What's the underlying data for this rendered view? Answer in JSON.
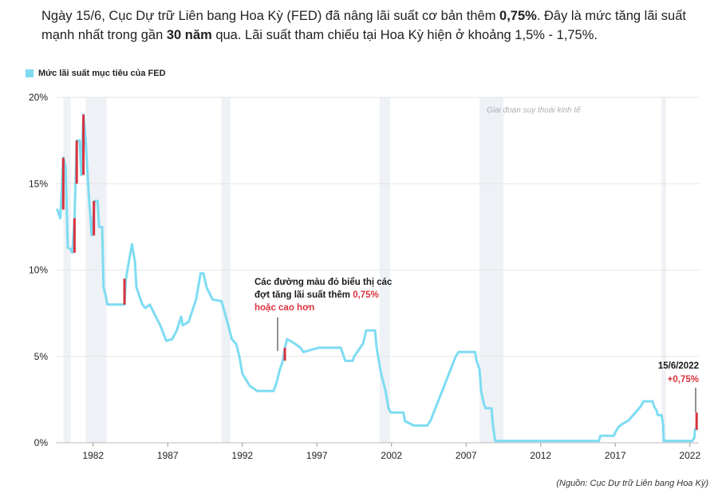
{
  "headline": {
    "p1": "Ngày 15/6, Cục Dự trữ Liên bang Hoa Kỳ (FED) đã nâng lãi suất cơ bản thêm ",
    "b1": "0,75%",
    "p2": ". Đây là mức tăng lãi suất mạnh nhất trong gần ",
    "b2": "30 năm",
    "p3": " qua. Lãi suất tham chiếu tại Hoa Kỳ hiện ở khoảng 1,5% - 1,75%."
  },
  "source": "(Nguồn: Cục Dự trữ Liên bang Hoa Kỳ)",
  "colors": {
    "line": "#7ddcf2",
    "hike": "#d9333f",
    "recession": "#eef1f5",
    "grid": "#e6e6e6"
  },
  "chart_data": {
    "type": "line",
    "xlim": [
      1979.5,
      2022.6
    ],
    "ylim": [
      0,
      20
    ],
    "x_ticks": [
      1982,
      1987,
      1992,
      1997,
      2002,
      2007,
      2012,
      2017,
      2022
    ],
    "y_ticks": [
      0,
      5,
      10,
      15,
      20
    ],
    "y_tick_labels": [
      "0%",
      "5%",
      "10%",
      "15%",
      "20%"
    ],
    "legend": {
      "label": "Mức lãi suất mục tiêu của FED",
      "placement": "top-left"
    },
    "recession_label": "Giai đoạn suy thoái kinh tế",
    "recessions": [
      [
        1980.0,
        1980.5
      ],
      [
        1981.5,
        1982.9
      ],
      [
        1990.6,
        1991.2
      ],
      [
        2001.2,
        2001.9
      ],
      [
        2007.9,
        2009.5
      ],
      [
        2020.1,
        2020.4
      ]
    ],
    "series": [
      {
        "name": "Mức lãi suất mục tiêu của FED",
        "points": [
          [
            1979.6,
            13.5
          ],
          [
            1979.8,
            13.0
          ],
          [
            1980.0,
            16.5
          ],
          [
            1980.15,
            16.0
          ],
          [
            1980.3,
            11.3
          ],
          [
            1980.5,
            11.2
          ],
          [
            1980.6,
            11.0
          ],
          [
            1980.75,
            13.0
          ],
          [
            1980.9,
            17.5
          ],
          [
            1981.1,
            17.5
          ],
          [
            1981.2,
            15.5
          ],
          [
            1981.35,
            19.0
          ],
          [
            1981.5,
            17.5
          ],
          [
            1981.7,
            14.5
          ],
          [
            1981.9,
            12.0
          ],
          [
            1982.1,
            14.0
          ],
          [
            1982.3,
            14.0
          ],
          [
            1982.4,
            12.5
          ],
          [
            1982.6,
            12.5
          ],
          [
            1982.7,
            9.0
          ],
          [
            1982.85,
            8.5
          ],
          [
            1982.95,
            8.0
          ],
          [
            1983.5,
            8.0
          ],
          [
            1984.1,
            8.0
          ],
          [
            1984.2,
            9.5
          ],
          [
            1984.4,
            10.5
          ],
          [
            1984.6,
            11.5
          ],
          [
            1984.8,
            10.5
          ],
          [
            1984.9,
            9.0
          ],
          [
            1985.1,
            8.5
          ],
          [
            1985.3,
            8.0
          ],
          [
            1985.5,
            7.8
          ],
          [
            1985.8,
            8.0
          ],
          [
            1986.2,
            7.3
          ],
          [
            1986.5,
            6.8
          ],
          [
            1986.9,
            5.9
          ],
          [
            1987.3,
            6.0
          ],
          [
            1987.6,
            6.5
          ],
          [
            1987.9,
            7.3
          ],
          [
            1988.0,
            6.8
          ],
          [
            1988.4,
            7.0
          ],
          [
            1988.9,
            8.3
          ],
          [
            1989.2,
            9.8
          ],
          [
            1989.4,
            9.8
          ],
          [
            1989.6,
            9.0
          ],
          [
            1990.0,
            8.3
          ],
          [
            1990.6,
            8.2
          ],
          [
            1990.9,
            7.3
          ],
          [
            1991.3,
            6.0
          ],
          [
            1991.6,
            5.7
          ],
          [
            1991.8,
            5.0
          ],
          [
            1992.0,
            4.0
          ],
          [
            1992.5,
            3.3
          ],
          [
            1993.0,
            3.0
          ],
          [
            1994.1,
            3.0
          ],
          [
            1994.3,
            3.5
          ],
          [
            1994.5,
            4.2
          ],
          [
            1994.7,
            4.7
          ],
          [
            1994.85,
            5.5
          ],
          [
            1995.0,
            6.0
          ],
          [
            1995.5,
            5.75
          ],
          [
            1995.9,
            5.5
          ],
          [
            1996.1,
            5.25
          ],
          [
            1997.1,
            5.5
          ],
          [
            1998.6,
            5.5
          ],
          [
            1998.8,
            5.0
          ],
          [
            1998.9,
            4.75
          ],
          [
            1999.4,
            4.75
          ],
          [
            1999.5,
            5.0
          ],
          [
            1999.9,
            5.5
          ],
          [
            2000.1,
            5.75
          ],
          [
            2000.3,
            6.5
          ],
          [
            2000.9,
            6.5
          ],
          [
            2001.0,
            5.5
          ],
          [
            2001.3,
            4.0
          ],
          [
            2001.6,
            3.0
          ],
          [
            2001.8,
            2.0
          ],
          [
            2001.95,
            1.75
          ],
          [
            2002.8,
            1.75
          ],
          [
            2002.9,
            1.25
          ],
          [
            2003.5,
            1.0
          ],
          [
            2004.4,
            1.0
          ],
          [
            2004.6,
            1.25
          ],
          [
            2005.4,
            3.0
          ],
          [
            2006.3,
            5.0
          ],
          [
            2006.5,
            5.25
          ],
          [
            2007.6,
            5.25
          ],
          [
            2007.7,
            4.75
          ],
          [
            2007.9,
            4.25
          ],
          [
            2008.0,
            3.0
          ],
          [
            2008.2,
            2.25
          ],
          [
            2008.3,
            2.0
          ],
          [
            2008.7,
            2.0
          ],
          [
            2008.8,
            1.0
          ],
          [
            2008.95,
            0.1
          ],
          [
            2015.9,
            0.1
          ],
          [
            2016.0,
            0.4
          ],
          [
            2016.9,
            0.4
          ],
          [
            2017.0,
            0.6
          ],
          [
            2017.2,
            0.9
          ],
          [
            2017.5,
            1.1
          ],
          [
            2017.9,
            1.3
          ],
          [
            2018.2,
            1.6
          ],
          [
            2018.5,
            1.9
          ],
          [
            2018.7,
            2.1
          ],
          [
            2018.9,
            2.4
          ],
          [
            2019.5,
            2.4
          ],
          [
            2019.6,
            2.1
          ],
          [
            2019.75,
            1.9
          ],
          [
            2019.85,
            1.6
          ],
          [
            2020.1,
            1.6
          ],
          [
            2020.2,
            1.1
          ],
          [
            2020.25,
            0.1
          ],
          [
            2022.15,
            0.1
          ],
          [
            2022.3,
            0.3
          ],
          [
            2022.35,
            0.8
          ],
          [
            2022.45,
            0.8
          ]
        ]
      }
    ],
    "hikes": [
      [
        1980.0,
        13.5,
        16.5
      ],
      [
        1980.75,
        11.0,
        13.0
      ],
      [
        1980.9,
        15.0,
        17.5
      ],
      [
        1981.35,
        15.5,
        19.0
      ],
      [
        1982.05,
        12.0,
        14.0
      ],
      [
        1984.1,
        8.0,
        9.5
      ],
      [
        1994.85,
        4.75,
        5.5
      ],
      [
        2022.45,
        0.75,
        1.75
      ]
    ],
    "annotations": {
      "hike_note": [
        "Các đường màu đỏ biểu thị các",
        "đợt   tăng lãi suất thêm ",
        "0,75%",
        "hoặc cao hơn"
      ],
      "latest_date": "15/6/2022",
      "latest_change": "+0,75%"
    }
  }
}
